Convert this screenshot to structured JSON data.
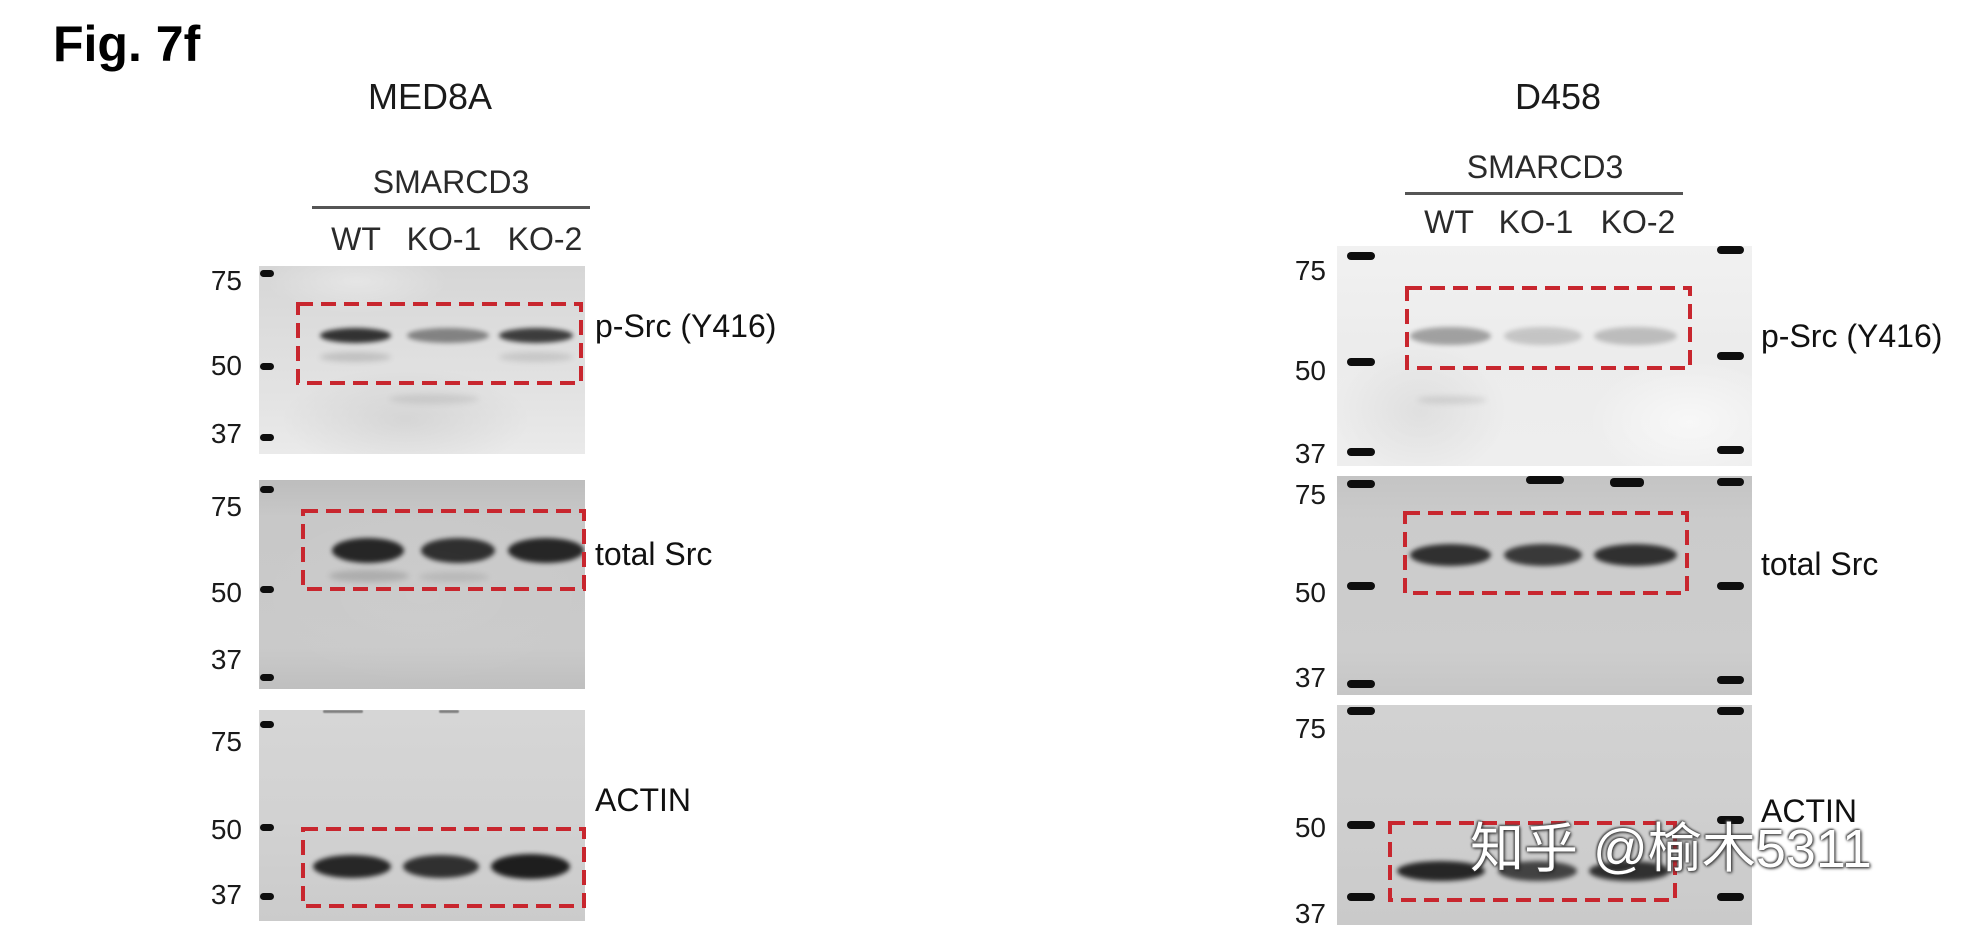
{
  "figure_label": "Fig. 7f",
  "colors": {
    "highlight_box": "#c8262e",
    "band": "#151515",
    "ladder": "#0e0e0e"
  },
  "panels": {
    "med8a": {
      "title": "MED8A",
      "group_label": "SMARCD3",
      "lanes": [
        "WT",
        "KO-1",
        "KO-2"
      ],
      "blots": [
        {
          "target": "p-Src (Y416)",
          "markers": [
            "75",
            "50",
            "37"
          ],
          "band_intensity": [
            0.85,
            0.45,
            0.8
          ]
        },
        {
          "target": "total Src",
          "markers": [
            "75",
            "50",
            "37"
          ],
          "band_intensity": [
            0.9,
            0.85,
            0.9
          ]
        },
        {
          "target": "ACTIN",
          "markers": [
            "75",
            "50",
            "37"
          ],
          "band_intensity": [
            0.9,
            0.85,
            0.95
          ]
        }
      ]
    },
    "d458": {
      "title": "D458",
      "group_label": "SMARCD3",
      "lanes": [
        "WT",
        "KO-1",
        "KO-2"
      ],
      "blots": [
        {
          "target": "p-Src (Y416)",
          "markers": [
            "75",
            "50",
            "37"
          ],
          "band_intensity": [
            0.35,
            0.18,
            0.22
          ]
        },
        {
          "target": "total Src",
          "markers": [
            "75",
            "50",
            "37"
          ],
          "band_intensity": [
            0.85,
            0.8,
            0.85
          ]
        },
        {
          "target": "ACTIN",
          "markers": [
            "75",
            "50",
            "37"
          ],
          "band_intensity": [
            0.9,
            0.75,
            0.85
          ]
        }
      ]
    }
  },
  "watermark": "知乎 @榆木5311"
}
